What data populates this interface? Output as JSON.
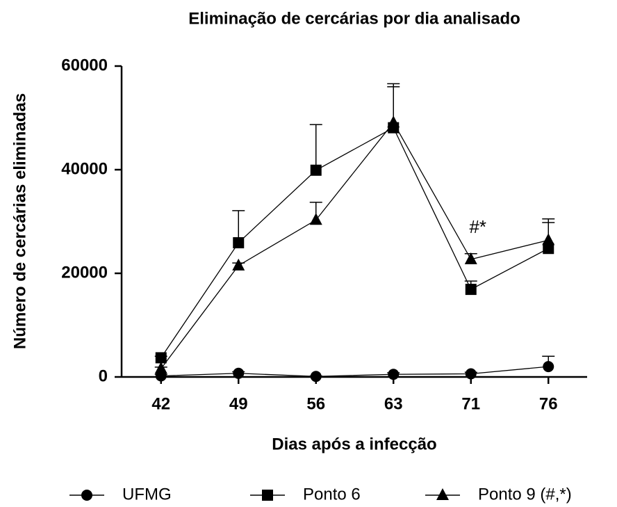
{
  "chart_data": {
    "type": "line",
    "title": "Eliminação de cercárias por dia analisado",
    "x_label": "Dias após a infecção",
    "y_label": "Número de cercárias eliminadas",
    "categories": [
      "42",
      "49",
      "56",
      "63",
      "71",
      "76"
    ],
    "series": [
      {
        "name": "UFMG",
        "color": "#000000",
        "marker": "circle",
        "values": [
          200,
          700,
          100,
          500,
          600,
          2000
        ],
        "errors": [
          300,
          300,
          100,
          300,
          300,
          2000
        ]
      },
      {
        "name": "Ponto 6",
        "color": "#000000",
        "marker": "square",
        "values": [
          3700,
          25900,
          39900,
          48100,
          16900,
          24800
        ],
        "errors": [
          300,
          6200,
          8800,
          7900,
          1600,
          5000
        ]
      },
      {
        "name": "Ponto 9 (#,*)",
        "color": "#000000",
        "marker": "triangle",
        "values": [
          1600,
          21500,
          30300,
          49100,
          22700,
          26400
        ],
        "errors": [
          300,
          500,
          3400,
          7500,
          1100,
          4100
        ]
      }
    ],
    "annotation": "#*",
    "ylim": [
      0,
      60000
    ],
    "yticks": [
      0,
      20000,
      40000,
      60000
    ],
    "legend": "bottom"
  }
}
